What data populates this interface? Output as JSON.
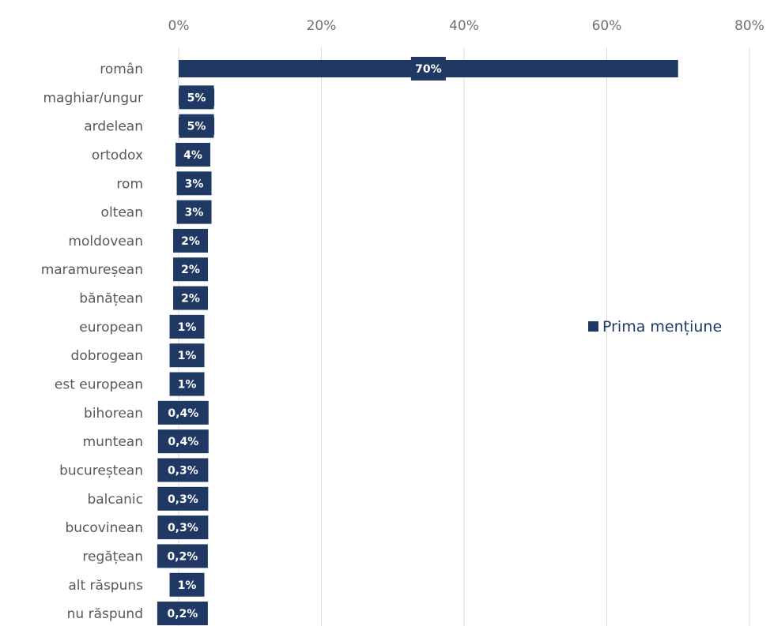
{
  "chart_data": {
    "type": "bar",
    "orientation": "horizontal",
    "title": "",
    "xlabel": "",
    "ylabel": "",
    "xlim": [
      0,
      80
    ],
    "x_ticks": [
      "0%",
      "20%",
      "40%",
      "60%",
      "80%"
    ],
    "x_tick_values": [
      0,
      20,
      40,
      60,
      80
    ],
    "grid": true,
    "legend_position": "right",
    "bar_color": "#1f3864",
    "categories": [
      "român",
      "maghiar/ungur",
      "ardelean",
      "ortodox",
      "rom",
      "oltean",
      "moldovean",
      "maramureșean",
      "bănățean",
      "european",
      "dobrogean",
      "est european",
      "bihorean",
      "muntean",
      "bucureștean",
      "balcanic",
      "bucovinean",
      "regățean",
      "alt răspuns",
      "nu răspund"
    ],
    "series": [
      {
        "name": "Prima mențiune",
        "values": [
          70,
          5,
          5,
          4,
          3,
          3,
          2,
          2,
          2,
          1,
          1,
          1,
          0.4,
          0.4,
          0.3,
          0.3,
          0.3,
          0.2,
          1,
          0.2
        ],
        "labels": [
          "70%",
          "5%",
          "5%",
          "4%",
          "3%",
          "3%",
          "2%",
          "2%",
          "2%",
          "1%",
          "1%",
          "1%",
          "0,4%",
          "0,4%",
          "0,3%",
          "0,3%",
          "0,3%",
          "0,2%",
          "1%",
          "0,2%"
        ]
      }
    ]
  }
}
